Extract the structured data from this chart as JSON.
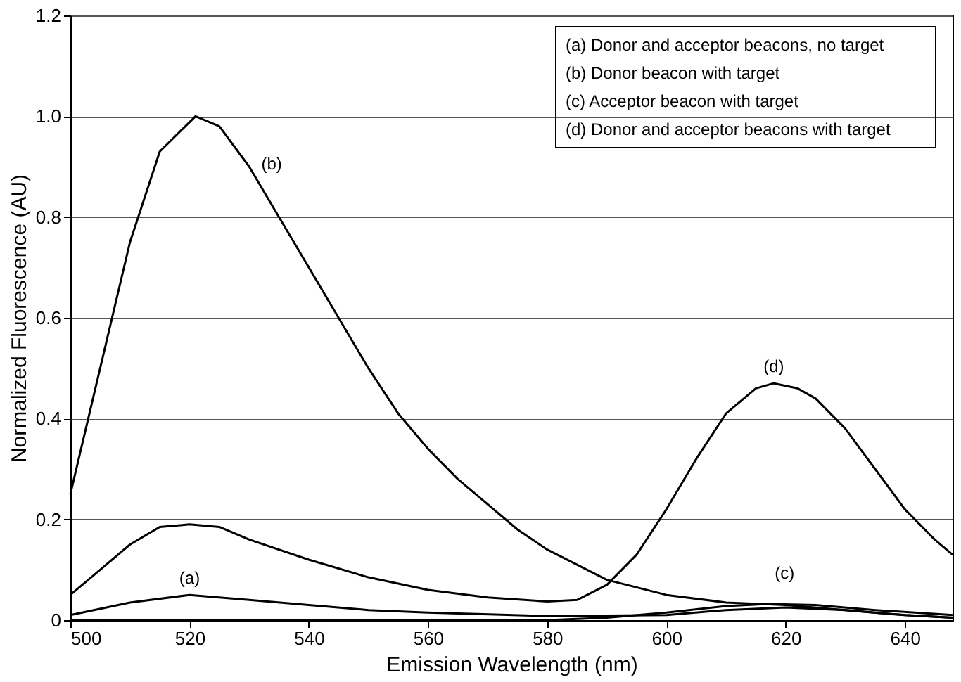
{
  "chart_data": {
    "type": "line",
    "xlabel": "Emission Wavelength (nm)",
    "ylabel": "Normalized Fluorescence (AU)",
    "xlim": [
      500,
      648
    ],
    "xticks": [
      500,
      520,
      540,
      560,
      580,
      600,
      620,
      640
    ],
    "ylim": [
      0,
      1.2
    ],
    "yticks": [
      0,
      0.2,
      0.4,
      0.6,
      0.8,
      {
        "value": 1.0,
        "label": "1.0"
      },
      1.2
    ],
    "grid": "y",
    "line_style": "solid",
    "marker": "none",
    "series": [
      {
        "color": "#000000",
        "x": [
          500,
          510,
          520,
          530,
          540,
          550,
          560,
          580,
          600,
          610,
          620,
          630,
          640,
          648
        ],
        "values": [
          0.01,
          0.035,
          0.05,
          0.04,
          0.03,
          0.02,
          0.015,
          0.008,
          0.01,
          0.02,
          0.025,
          0.02,
          0.01,
          0.005
        ]
      },
      {
        "color": "#000000",
        "x": [
          500,
          505,
          510,
          515,
          521,
          525,
          530,
          535,
          540,
          545,
          550,
          555,
          560,
          565,
          570,
          575,
          580,
          585,
          590,
          600,
          610,
          620,
          630,
          640,
          648
        ],
        "values": [
          0.25,
          0.5,
          0.75,
          0.93,
          1.0,
          0.98,
          0.9,
          0.8,
          0.7,
          0.6,
          0.5,
          0.41,
          0.34,
          0.28,
          0.23,
          0.18,
          0.14,
          0.11,
          0.08,
          0.05,
          0.035,
          0.03,
          0.02,
          0.01,
          0.005
        ]
      },
      {
        "color": "#000000",
        "x": [
          500,
          580,
          590,
          600,
          610,
          617,
          625,
          635,
          648
        ],
        "values": [
          0,
          0,
          0.005,
          0.015,
          0.028,
          0.032,
          0.03,
          0.02,
          0.01
        ]
      },
      {
        "color": "#000000",
        "x": [
          500,
          505,
          510,
          515,
          520,
          525,
          530,
          540,
          550,
          560,
          570,
          580,
          585,
          590,
          595,
          600,
          605,
          610,
          615,
          618,
          622,
          625,
          630,
          635,
          640,
          645,
          648
        ],
        "values": [
          0.05,
          0.1,
          0.15,
          0.185,
          0.19,
          0.185,
          0.16,
          0.12,
          0.085,
          0.06,
          0.045,
          0.037,
          0.04,
          0.07,
          0.13,
          0.22,
          0.32,
          0.41,
          0.46,
          0.47,
          0.46,
          0.44,
          0.38,
          0.3,
          0.22,
          0.16,
          0.13
        ]
      }
    ],
    "annotations": [
      {
        "text": "(a)",
        "x": 520,
        "y": 0.05
      },
      {
        "text": "(b)",
        "x": 530,
        "y": 0.9
      },
      {
        "text": "(c)",
        "x": 617,
        "y": 0.032
      },
      {
        "text": "(d)",
        "x": 618,
        "y": 0.47
      },
      "(a) Donor and acceptor beacons, no target",
      "(b) Donor beacon with target",
      "(c) Acceptor beacon with target",
      "(d) Donor and acceptor beacons with target"
    ]
  }
}
